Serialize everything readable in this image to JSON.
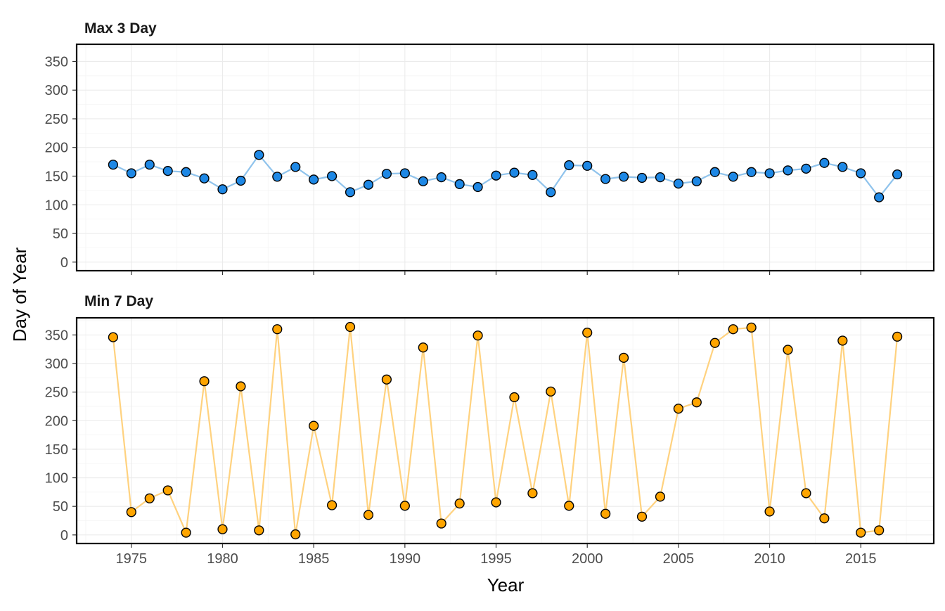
{
  "chart_data": {
    "type": "line",
    "xlabel": "Year",
    "ylabel": "Day of Year",
    "x_ticks": [
      1975,
      1980,
      1985,
      1990,
      1995,
      2000,
      2005,
      2010,
      2015
    ],
    "y_ticks": [
      0,
      50,
      100,
      150,
      200,
      250,
      300,
      350
    ],
    "grid": true,
    "panels": [
      {
        "title": "Max 3 Day",
        "line_color": "#8fc3ec",
        "point_fill": "#1e88e5",
        "xlim": [
          1972.0,
          2019.0
        ],
        "ylim": [
          -15,
          380
        ],
        "x": [
          1974,
          1975,
          1976,
          1977,
          1978,
          1979,
          1980,
          1981,
          1982,
          1983,
          1984,
          1985,
          1986,
          1987,
          1988,
          1989,
          1990,
          1991,
          1992,
          1993,
          1994,
          1995,
          1996,
          1997,
          1998,
          1999,
          2000,
          2001,
          2002,
          2003,
          2004,
          2005,
          2006,
          2007,
          2008,
          2009,
          2010,
          2011,
          2012,
          2013,
          2014,
          2015,
          2016,
          2017
        ],
        "y": [
          170,
          155,
          170,
          159,
          157,
          146,
          127,
          142,
          187,
          149,
          166,
          144,
          150,
          122,
          135,
          154,
          155,
          141,
          148,
          136,
          131,
          151,
          156,
          152,
          122,
          169,
          168,
          145,
          149,
          147,
          148,
          137,
          141,
          157,
          149,
          157,
          155,
          160,
          163,
          173,
          166,
          155,
          113,
          153
        ]
      },
      {
        "title": "Min 7 Day",
        "line_color": "#ffd27f",
        "point_fill": "#ffa500",
        "xlim": [
          1972.0,
          2019.0
        ],
        "ylim": [
          -15,
          380
        ],
        "x": [
          1974,
          1975,
          1976,
          1977,
          1978,
          1979,
          1980,
          1981,
          1982,
          1983,
          1984,
          1985,
          1986,
          1987,
          1988,
          1989,
          1990,
          1991,
          1992,
          1993,
          1994,
          1995,
          1996,
          1997,
          1998,
          1999,
          2000,
          2001,
          2002,
          2003,
          2004,
          2005,
          2006,
          2007,
          2008,
          2009,
          2010,
          2011,
          2012,
          2013,
          2014,
          2015,
          2016,
          2017
        ],
        "y": [
          346,
          40,
          64,
          78,
          4,
          269,
          10,
          260,
          8,
          360,
          1,
          191,
          52,
          364,
          35,
          272,
          51,
          328,
          20,
          55,
          349,
          57,
          241,
          73,
          251,
          51,
          354,
          37,
          310,
          32,
          67,
          221,
          232,
          336,
          360,
          363,
          41,
          324,
          73,
          29,
          340,
          4,
          8,
          347
        ]
      }
    ]
  }
}
